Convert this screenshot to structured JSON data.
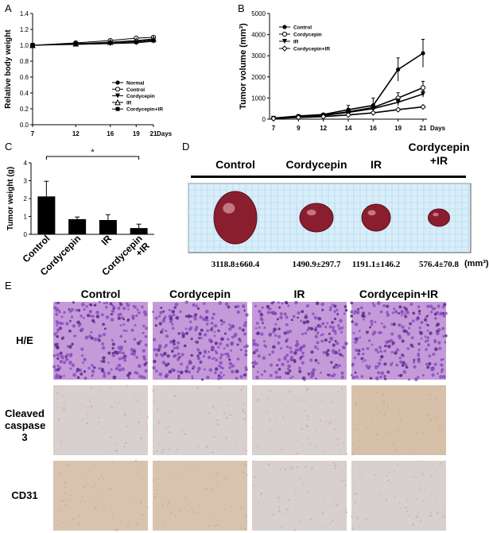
{
  "panels": {
    "A": {
      "label": "A"
    },
    "B": {
      "label": "B"
    },
    "C": {
      "label": "C"
    },
    "D": {
      "label": "D"
    },
    "E": {
      "label": "E"
    }
  },
  "colors": {
    "bar_fill": "#000000",
    "he_stain": "#8a4fc0",
    "ihc_background": "#d8cfcf",
    "ihc_brown": "#c9a888",
    "photo_grid": "#a9d3ec",
    "tumor": "#8b1e2e"
  },
  "chart_data": [
    {
      "id": "A",
      "type": "line",
      "ylabel": "Relative body weight",
      "xlabel": "Days",
      "x": [
        7,
        12,
        16,
        19,
        21
      ],
      "x_ticks": [
        "7",
        "12",
        "16",
        "19",
        "21"
      ],
      "y_ticks": [
        "0.0",
        "0.2",
        "0.4",
        "0.6",
        "0.8",
        "1.0",
        "1.2",
        "1.4"
      ],
      "ylim": [
        0,
        1.4
      ],
      "legend_position": "bottom-right",
      "series": [
        {
          "name": "Normal",
          "marker": "filled-circle",
          "values": [
            1.0,
            1.02,
            1.03,
            1.05,
            1.07
          ]
        },
        {
          "name": "Control",
          "marker": "open-circle",
          "values": [
            1.0,
            1.03,
            1.06,
            1.09,
            1.1
          ]
        },
        {
          "name": "Cordycepin",
          "marker": "filled-triangle-down",
          "values": [
            1.0,
            1.01,
            1.02,
            1.03,
            1.05
          ]
        },
        {
          "name": "IR",
          "marker": "open-triangle",
          "values": [
            1.0,
            1.02,
            1.04,
            1.06,
            1.08
          ]
        },
        {
          "name": "Cordycepin+IR",
          "marker": "filled-square",
          "values": [
            1.0,
            1.02,
            1.03,
            1.04,
            1.06
          ]
        }
      ]
    },
    {
      "id": "B",
      "type": "line",
      "ylabel": "Tumor volume (mm³)",
      "xlabel": "Days",
      "x": [
        7,
        9,
        12,
        14,
        16,
        19,
        21
      ],
      "x_ticks": [
        "7",
        "9",
        "12",
        "14",
        "16",
        "19",
        "21"
      ],
      "y_ticks": [
        "0",
        "1000",
        "2000",
        "3000",
        "4000",
        "5000"
      ],
      "ylim": [
        0,
        5000
      ],
      "legend_position": "top-left",
      "series": [
        {
          "name": "Control",
          "marker": "filled-circle",
          "values": [
            50,
            150,
            220,
            450,
            650,
            2350,
            3120
          ],
          "errors": [
            20,
            40,
            60,
            200,
            350,
            550,
            660
          ]
        },
        {
          "name": "Cordycepin",
          "marker": "open-circle",
          "values": [
            40,
            120,
            180,
            350,
            550,
            1000,
            1490
          ],
          "errors": [
            15,
            30,
            50,
            100,
            150,
            250,
            300
          ]
        },
        {
          "name": "IR",
          "marker": "filled-triangle-down",
          "values": [
            40,
            110,
            170,
            320,
            500,
            800,
            1190
          ],
          "errors": [
            15,
            30,
            40,
            90,
            130,
            160,
            150
          ]
        },
        {
          "name": "Cordycepin+IR",
          "marker": "open-diamond",
          "values": [
            30,
            80,
            120,
            200,
            300,
            450,
            580
          ],
          "errors": [
            10,
            20,
            30,
            40,
            60,
            60,
            70
          ]
        }
      ]
    },
    {
      "id": "C",
      "type": "bar",
      "ylabel": "Tumor weight (g)",
      "categories": [
        "Control",
        "Cordycepin",
        "IR",
        "Cordycepin\n+IR"
      ],
      "values": [
        2.12,
        0.85,
        0.8,
        0.35
      ],
      "errors": [
        0.85,
        0.12,
        0.3,
        0.22
      ],
      "y_ticks": [
        "0",
        "1",
        "2",
        "3",
        "4"
      ],
      "ylim": [
        0,
        4
      ],
      "significance": {
        "between": [
          "Control",
          "Cordycepin\n+IR"
        ],
        "label": "*"
      }
    }
  ],
  "photo": {
    "groups": [
      {
        "name_lines": [
          "Control"
        ],
        "volume": "3118.8±660.4"
      },
      {
        "name_lines": [
          "Cordycepin"
        ],
        "volume": "1490.9±297.7"
      },
      {
        "name_lines": [
          "IR"
        ],
        "volume": "1191.1±146.2"
      },
      {
        "name_lines": [
          "Cordycepin",
          "+IR"
        ],
        "volume": "576.4±70.8"
      }
    ],
    "unit": "(mm³)"
  },
  "histology": {
    "columns": [
      "Control",
      "Cordycepin",
      "IR",
      "Cordycepin+IR"
    ],
    "rows": [
      {
        "label_lines": [
          "H/E"
        ],
        "stain": "he"
      },
      {
        "label_lines": [
          "Cleaved",
          "caspase 3"
        ],
        "stain": "ihc"
      },
      {
        "label_lines": [
          "CD31"
        ],
        "stain": "ihc"
      }
    ]
  }
}
